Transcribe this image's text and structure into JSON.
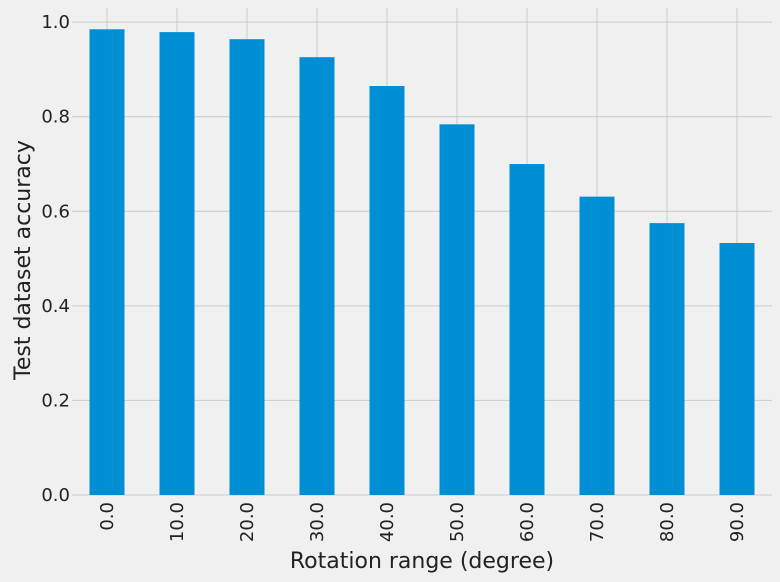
{
  "chart_data": {
    "type": "bar",
    "title": "",
    "xlabel": "Rotation range (degree)",
    "ylabel": "Test dataset accuracy",
    "categories": [
      "0.0",
      "10.0",
      "20.0",
      "30.0",
      "40.0",
      "50.0",
      "60.0",
      "70.0",
      "80.0",
      "90.0"
    ],
    "values": [
      0.985,
      0.979,
      0.964,
      0.926,
      0.865,
      0.784,
      0.7,
      0.631,
      0.575,
      0.533
    ],
    "ylim": [
      0,
      1.03
    ],
    "yticks": [
      "0.0",
      "0.2",
      "0.4",
      "0.6",
      "0.8",
      "1.0"
    ],
    "grid": true,
    "legend": "none",
    "bar_color": "#008fd5",
    "grid_color": "#cbcbcb",
    "background_color": "#f0f0f0"
  }
}
